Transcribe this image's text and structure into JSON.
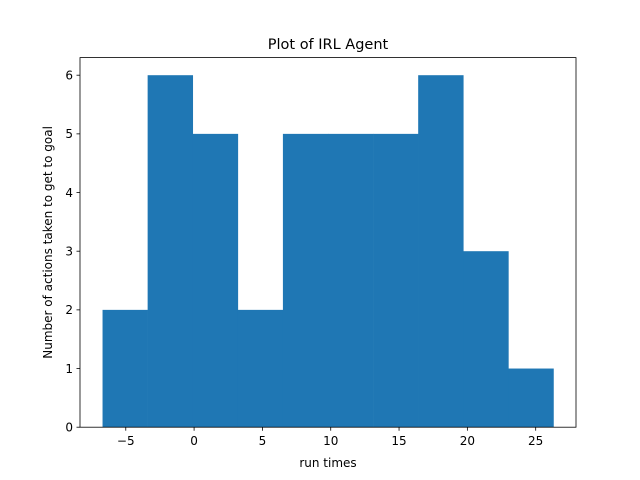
{
  "chart_data": {
    "type": "bar",
    "title": "Plot of IRL Agent",
    "xlabel": "run times",
    "ylabel": "Number of actions taken to get to goal",
    "bin_edges": [
      -6.7,
      -3.4,
      -0.1,
      3.2,
      6.5,
      9.8,
      13.1,
      16.4,
      19.7,
      23.0,
      26.3
    ],
    "values": [
      2,
      6,
      5,
      2,
      5,
      5,
      5,
      6,
      3,
      1
    ],
    "xlim": [
      -8.35,
      27.95
    ],
    "ylim": [
      0,
      6.3
    ],
    "xticks": [
      -5,
      0,
      5,
      10,
      15,
      20,
      25
    ],
    "xtick_labels": [
      "−5",
      "0",
      "5",
      "10",
      "15",
      "20",
      "25"
    ],
    "yticks": [
      0,
      1,
      2,
      3,
      4,
      5,
      6
    ],
    "ytick_labels": [
      "0",
      "1",
      "2",
      "3",
      "4",
      "5",
      "6"
    ],
    "bar_color": "#1f77b4",
    "grid": false,
    "legend": "none"
  }
}
